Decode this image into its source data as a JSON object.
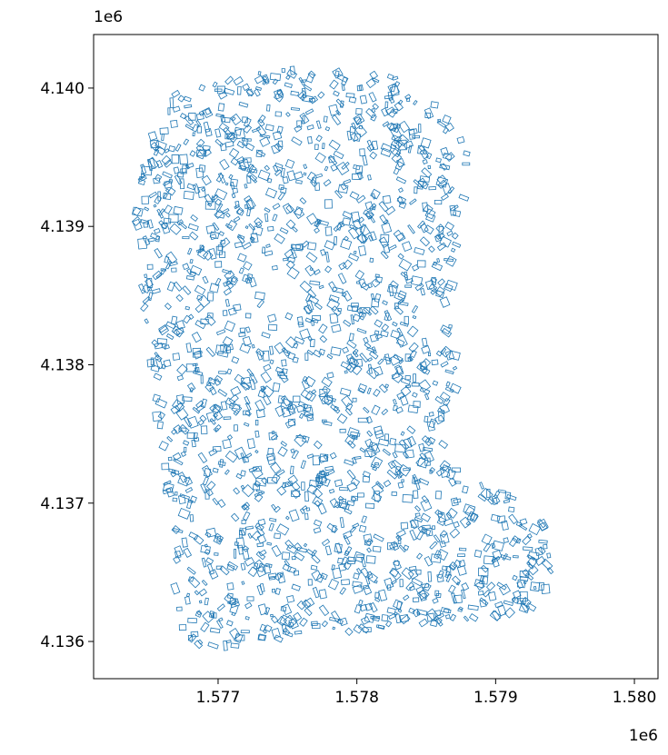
{
  "chart_data": {
    "type": "geo",
    "x_offset_label": "1e6",
    "y_offset_label": "1e6",
    "color": "#1f77b4",
    "xlim": [
      1576103,
      1580170
    ],
    "ylim": [
      4135731,
      4140387
    ],
    "xticks": [
      {
        "value": 1577000,
        "label": "1.577"
      },
      {
        "value": 1578000,
        "label": "1.578"
      },
      {
        "value": 1579000,
        "label": "1.579"
      },
      {
        "value": 1580000,
        "label": "1.580"
      }
    ],
    "yticks": [
      {
        "value": 4136000,
        "label": "4.136"
      },
      {
        "value": 4137000,
        "label": "4.137"
      },
      {
        "value": 4138000,
        "label": "4.138"
      },
      {
        "value": 4139000,
        "label": "4.139"
      },
      {
        "value": 4140000,
        "label": "4.140"
      }
    ]
  }
}
